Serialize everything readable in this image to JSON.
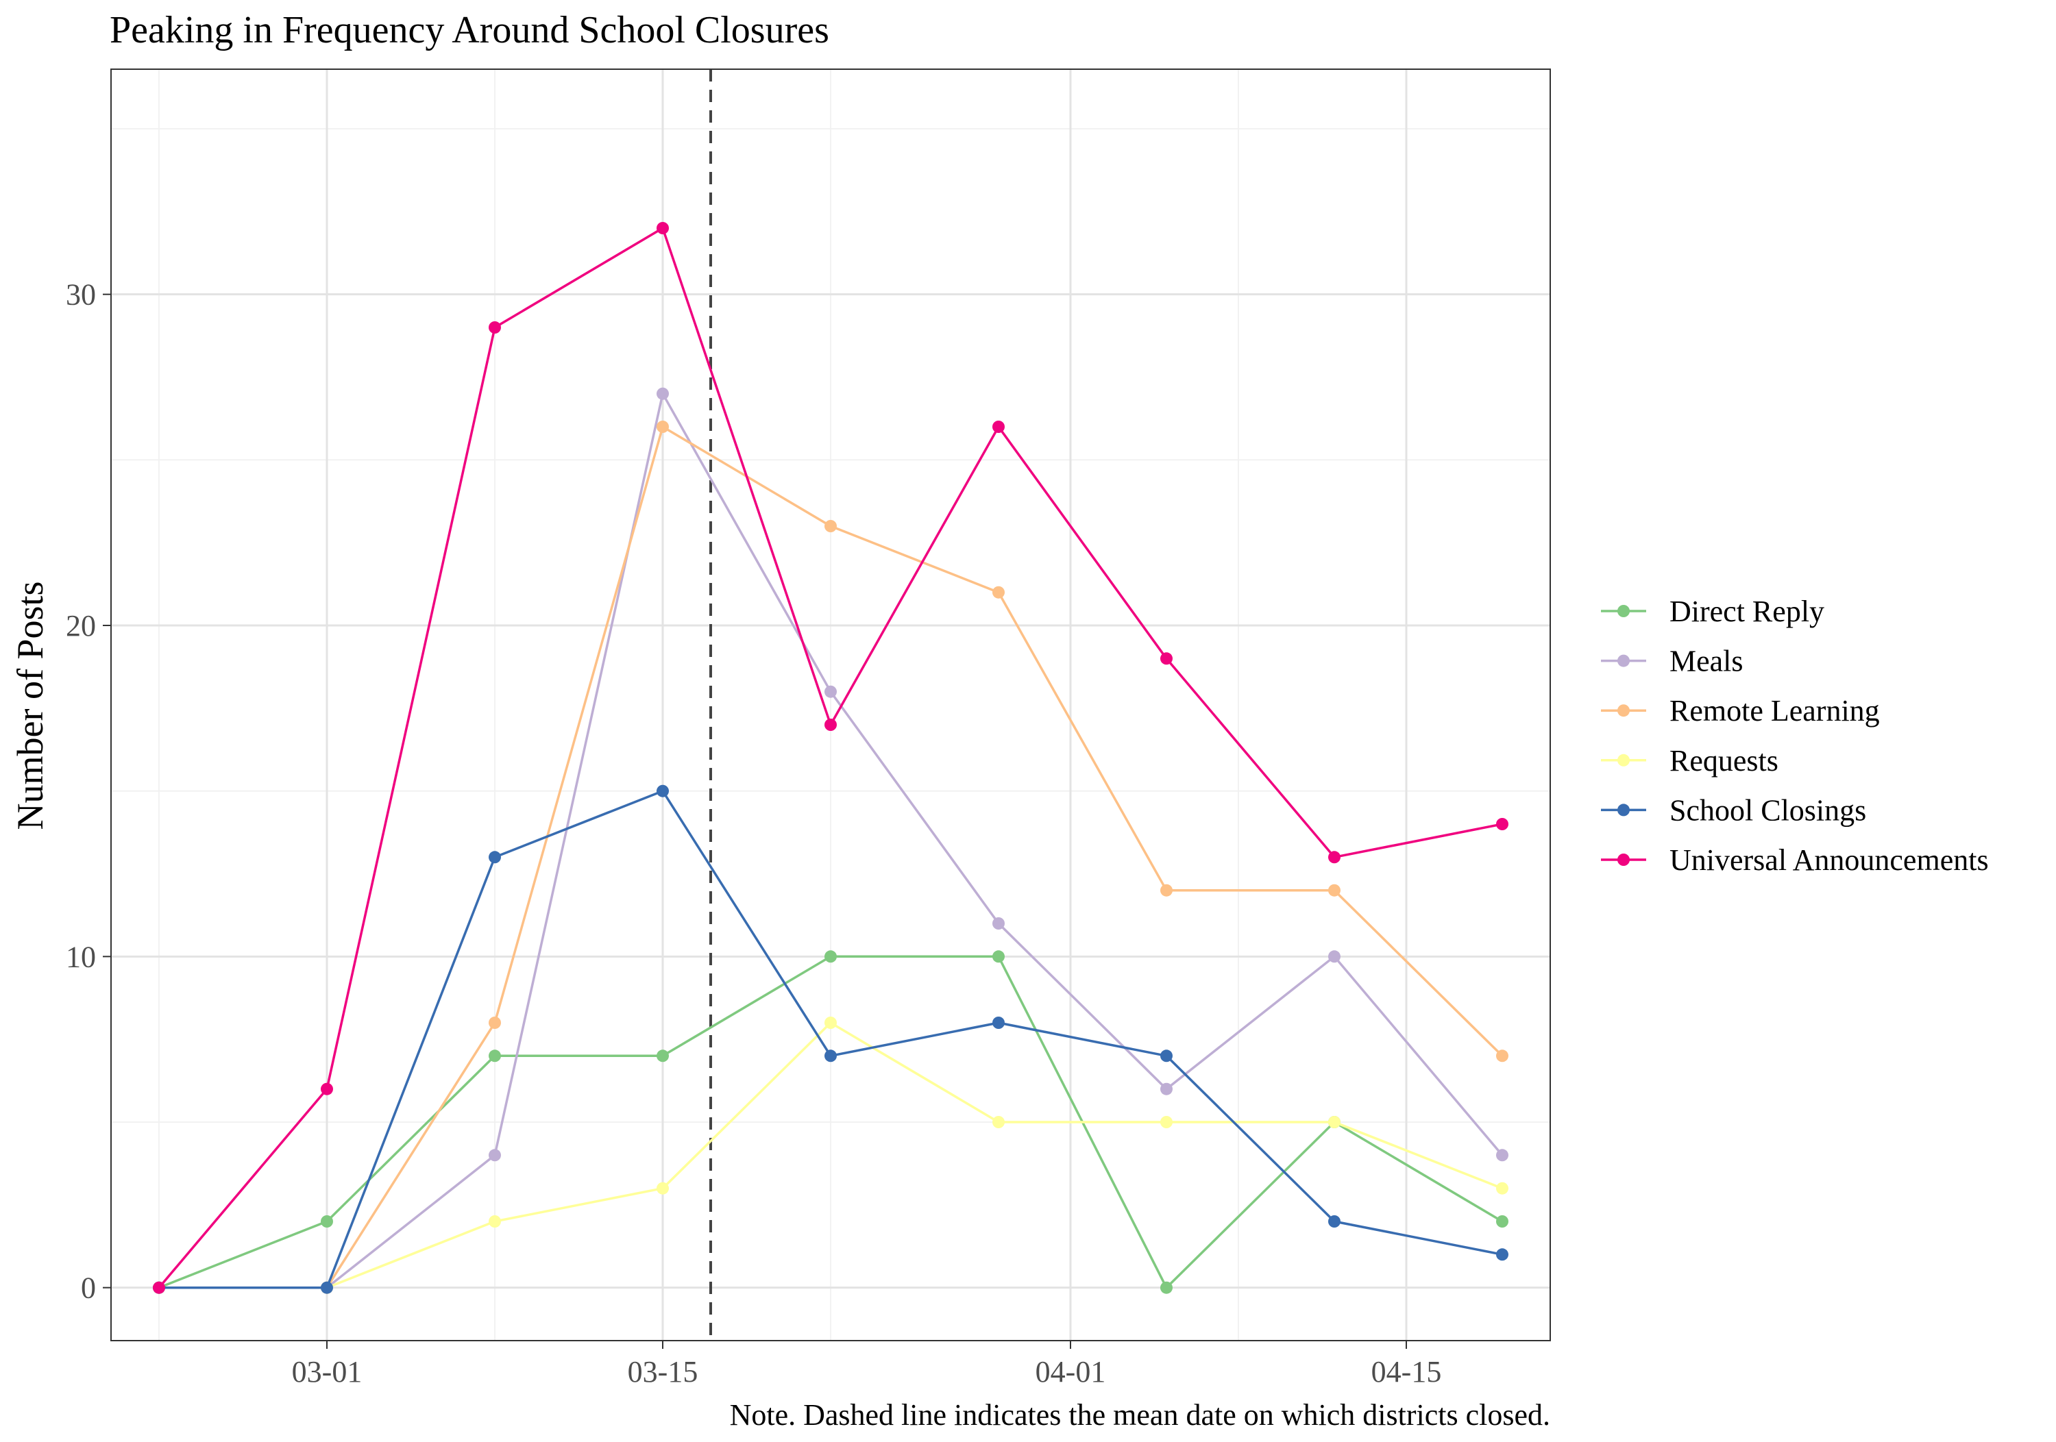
{
  "chart_data": {
    "type": "line",
    "title": "Peaking in Frequency Around School Closures",
    "xlabel": "",
    "ylabel": "Number of Posts",
    "caption": "Note. Dashed line indicates the mean date on which districts closed.",
    "x": [
      "2020-02-23",
      "2020-03-01",
      "2020-03-08",
      "2020-03-15",
      "2020-03-22",
      "2020-03-29",
      "2020-04-05",
      "2020-04-12",
      "2020-04-19"
    ],
    "xlim": [
      "2020-02-21",
      "2020-04-21"
    ],
    "ylim": [
      -1.6,
      36.8
    ],
    "x_ticks": [
      {
        "value": "2020-03-01",
        "label": "03-01"
      },
      {
        "value": "2020-03-15",
        "label": "03-15"
      },
      {
        "value": "2020-04-01",
        "label": "04-01"
      },
      {
        "value": "2020-04-15",
        "label": "04-15"
      }
    ],
    "x_minor_ticks": [
      "2020-02-23",
      "2020-03-08",
      "2020-03-22",
      "2020-04-08",
      "2020-04-22"
    ],
    "y_ticks": [
      0,
      10,
      20,
      30
    ],
    "y_minor_ticks": [
      5,
      15,
      25,
      35
    ],
    "closure_line_date": "2020-03-17",
    "grid": true,
    "legend_position": "right",
    "series": [
      {
        "name": "Direct Reply",
        "color": "#7fc97f",
        "values": [
          0,
          2,
          7,
          7,
          10,
          10,
          0,
          5,
          2
        ]
      },
      {
        "name": "Meals",
        "color": "#beaed4",
        "values": [
          0,
          0,
          4,
          27,
          18,
          11,
          6,
          10,
          4
        ]
      },
      {
        "name": "Remote Learning",
        "color": "#fdc086",
        "values": [
          0,
          0,
          8,
          26,
          23,
          21,
          12,
          12,
          7
        ]
      },
      {
        "name": "Requests",
        "color": "#ffff99",
        "values": [
          0,
          0,
          2,
          3,
          8,
          5,
          5,
          5,
          3
        ]
      },
      {
        "name": "School Closings",
        "color": "#386cb0",
        "values": [
          0,
          0,
          13,
          15,
          7,
          8,
          7,
          2,
          1
        ]
      },
      {
        "name": "Universal Announcements",
        "color": "#f0027f",
        "values": [
          0,
          6,
          29,
          32,
          17,
          26,
          19,
          13,
          14
        ]
      }
    ]
  }
}
